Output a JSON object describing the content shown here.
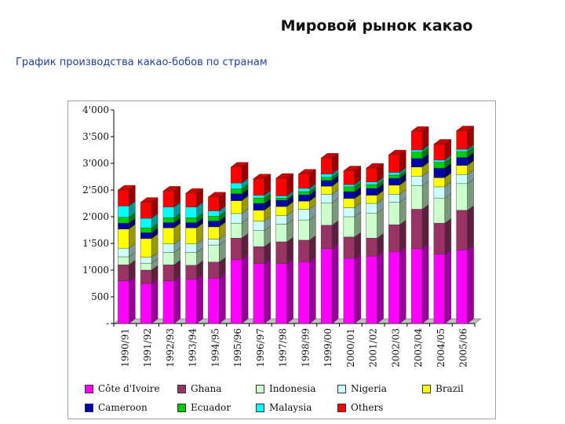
{
  "page": {
    "title": "Мировой рынок какао",
    "subtitle": "График производства какао-бобов по странам"
  },
  "chart_data": {
    "type": "bar",
    "stacked": true,
    "three_d": true,
    "categories": [
      "1990/91",
      "1991/92",
      "1992/93",
      "1993/94",
      "1994/95",
      "1995/96",
      "1996/97",
      "1997/98",
      "1998/99",
      "1999/00",
      "2000/01",
      "2001/02",
      "2002/03",
      "2003/04",
      "2004/05",
      "2005/06"
    ],
    "ylim": [
      0,
      4000
    ],
    "yticks": [
      0,
      500,
      1000,
      1500,
      2000,
      2500,
      3000,
      3500,
      4000
    ],
    "ytick_labels": [
      "-",
      "500",
      "1'000",
      "1'500",
      "2'000",
      "2'500",
      "3'000",
      "3'500",
      "4'000"
    ],
    "grid": false,
    "legend_position": "bottom",
    "series": [
      {
        "name": "Côte d'Ivoire",
        "color": "#ff00ff",
        "values": [
          800,
          750,
          800,
          830,
          850,
          1200,
          1120,
          1120,
          1160,
          1400,
          1220,
          1260,
          1350,
          1400,
          1300,
          1380
        ]
      },
      {
        "name": "Ghana",
        "color": "#993366",
        "values": [
          300,
          250,
          300,
          260,
          300,
          400,
          320,
          410,
          400,
          440,
          400,
          340,
          500,
          740,
          580,
          740
        ]
      },
      {
        "name": "Indonesia",
        "color": "#ccffcc",
        "values": [
          150,
          130,
          230,
          240,
          320,
          280,
          300,
          330,
          380,
          420,
          380,
          470,
          420,
          440,
          470,
          500
        ]
      },
      {
        "name": "Nigeria",
        "color": "#ccffff",
        "values": [
          160,
          110,
          160,
          160,
          110,
          180,
          180,
          160,
          200,
          160,
          170,
          180,
          150,
          180,
          210,
          170
        ]
      },
      {
        "name": "Brazil",
        "color": "#ffff00",
        "values": [
          360,
          350,
          300,
          300,
          230,
          240,
          200,
          170,
          150,
          150,
          170,
          150,
          170,
          170,
          170,
          170
        ]
      },
      {
        "name": "Cameroon",
        "color": "#0000aa",
        "values": [
          110,
          110,
          100,
          100,
          110,
          130,
          130,
          120,
          120,
          110,
          130,
          130,
          130,
          160,
          180,
          150
        ]
      },
      {
        "name": "Ecuador",
        "color": "#00cc00",
        "values": [
          110,
          90,
          90,
          90,
          90,
          90,
          100,
          40,
          60,
          60,
          90,
          70,
          60,
          120,
          110,
          110
        ]
      },
      {
        "name": "Malaysia",
        "color": "#00ffff",
        "values": [
          210,
          180,
          200,
          200,
          100,
          110,
          50,
          40,
          60,
          60,
          40,
          50,
          50,
          40,
          40,
          40
        ]
      },
      {
        "name": "Others",
        "color": "#ff0000",
        "values": [
          300,
          300,
          300,
          260,
          260,
          300,
          310,
          330,
          270,
          300,
          260,
          260,
          330,
          350,
          300,
          350
        ]
      }
    ]
  }
}
